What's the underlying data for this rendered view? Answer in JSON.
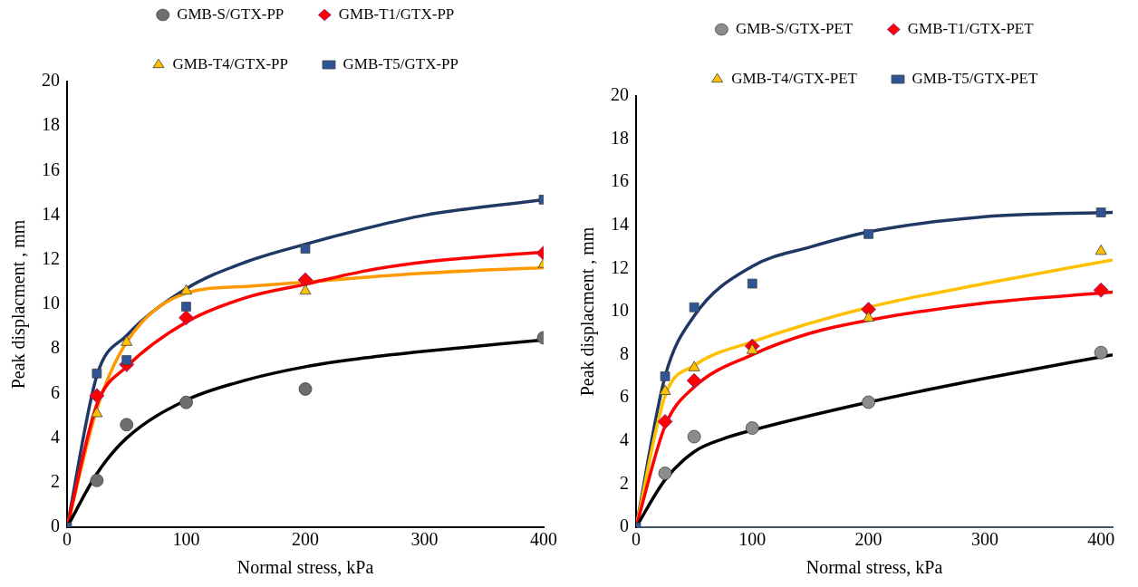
{
  "chart_data": [
    {
      "type": "scatter",
      "xlabel": "Normal stress, kPa",
      "ylabel": "Peak displacment , mm",
      "xlim": [
        0,
        400
      ],
      "xticks": [
        0,
        100,
        200,
        300,
        400
      ],
      "ylim": [
        0,
        20
      ],
      "yticks": [
        0,
        2,
        4,
        6,
        8,
        10,
        12,
        14,
        16,
        18,
        20
      ],
      "grid": false,
      "legend": "top",
      "x": [
        0,
        25,
        50,
        100,
        200,
        400
      ],
      "series": [
        {
          "name": "GMB-S/GTX-PP",
          "color": "#6e6e6e",
          "marker": "circle",
          "values": [
            null,
            2.1,
            4.6,
            5.6,
            6.2,
            8.5
          ]
        },
        {
          "name": "GMB-T1/GTX-PP",
          "color": "#ff0000",
          "marker": "diamond",
          "values": [
            null,
            5.9,
            7.3,
            9.4,
            11.1,
            12.3
          ]
        },
        {
          "name": "GMB-T4/GTX-PP",
          "color": "#ffc000",
          "marker": "triangle",
          "values": [
            null,
            5.1,
            8.3,
            10.6,
            10.6,
            11.8
          ]
        },
        {
          "name": "GMB-T5/GTX-PP",
          "color": "#2f5597",
          "marker": "square",
          "values": [
            0,
            6.9,
            7.5,
            9.9,
            12.5,
            14.7
          ]
        },
        {
          "type": "line",
          "color": "#000000",
          "marker": "none",
          "x": [
            0,
            25,
            50,
            100,
            150,
            200,
            250,
            300,
            400
          ],
          "values": [
            0,
            2.4,
            4.0,
            5.7,
            6.6,
            7.2,
            7.6,
            7.9,
            8.4
          ]
        },
        {
          "type": "line",
          "color": "#ff0000",
          "marker": "none",
          "x": [
            0,
            25,
            50,
            100,
            150,
            200,
            250,
            300,
            400
          ],
          "values": [
            0,
            5.5,
            7.2,
            9.2,
            10.3,
            10.9,
            11.5,
            11.9,
            12.35
          ]
        },
        {
          "type": "line",
          "color": "#ff9900",
          "marker": "none",
          "x": [
            0,
            25,
            50,
            100,
            150,
            200,
            300,
            400
          ],
          "values": [
            0,
            5.3,
            8.3,
            10.5,
            10.8,
            11.0,
            11.4,
            11.65
          ]
        },
        {
          "type": "line",
          "color": "#203864",
          "marker": "none",
          "x": [
            0,
            25,
            50,
            100,
            150,
            200,
            250,
            300,
            400
          ],
          "values": [
            0,
            6.8,
            8.6,
            10.7,
            11.9,
            12.7,
            13.4,
            14.0,
            14.7
          ]
        }
      ]
    },
    {
      "type": "scatter",
      "xlabel": "Normal stress, kPa",
      "ylabel": "Peak displacment , mm",
      "xlim": [
        0,
        410
      ],
      "xticks": [
        0,
        100,
        200,
        300,
        400
      ],
      "ylim": [
        0,
        20
      ],
      "yticks": [
        0,
        2,
        4,
        6,
        8,
        10,
        12,
        14,
        16,
        18,
        20
      ],
      "grid": false,
      "legend": "top",
      "x": [
        0,
        25,
        50,
        100,
        200,
        400
      ],
      "series": [
        {
          "name": "GMB-S/GTX-PET",
          "color": "#8c8c8c",
          "marker": "circle",
          "values": [
            null,
            2.5,
            4.2,
            4.6,
            5.8,
            8.1
          ]
        },
        {
          "name": "GMB-T1/GTX-PET",
          "color": "#ff0000",
          "marker": "diamond",
          "values": [
            null,
            4.9,
            6.8,
            8.4,
            10.1,
            11.0
          ]
        },
        {
          "name": "GMB-T4/GTX-PET",
          "color": "#ffc000",
          "marker": "triangle",
          "values": [
            null,
            6.3,
            7.4,
            8.2,
            9.7,
            12.8
          ]
        },
        {
          "name": "GMB-T5/GTX-PET",
          "color": "#2f5597",
          "marker": "square",
          "values": [
            0,
            7.0,
            10.2,
            11.3,
            13.6,
            14.6
          ]
        },
        {
          "type": "line",
          "color": "#000000",
          "marker": "none",
          "x": [
            0,
            25,
            50,
            75,
            100,
            200,
            300,
            410
          ],
          "values": [
            0,
            2.2,
            3.5,
            4.1,
            4.5,
            5.8,
            6.9,
            8.0
          ]
        },
        {
          "type": "line",
          "color": "#ff0000",
          "marker": "none",
          "x": [
            0,
            25,
            50,
            100,
            150,
            200,
            300,
            410
          ],
          "values": [
            0,
            4.7,
            6.5,
            8.0,
            9.0,
            9.6,
            10.4,
            10.9
          ]
        },
        {
          "type": "line",
          "color": "#ffc000",
          "marker": "none",
          "x": [
            0,
            25,
            50,
            100,
            200,
            300,
            410
          ],
          "values": [
            0,
            6.1,
            7.5,
            8.6,
            10.2,
            11.3,
            12.4
          ]
        },
        {
          "type": "line",
          "color": "#203864",
          "marker": "none",
          "x": [
            0,
            25,
            50,
            100,
            150,
            200,
            300,
            410
          ],
          "values": [
            0,
            7.0,
            9.8,
            12.1,
            13.0,
            13.7,
            14.4,
            14.6
          ]
        }
      ]
    }
  ]
}
